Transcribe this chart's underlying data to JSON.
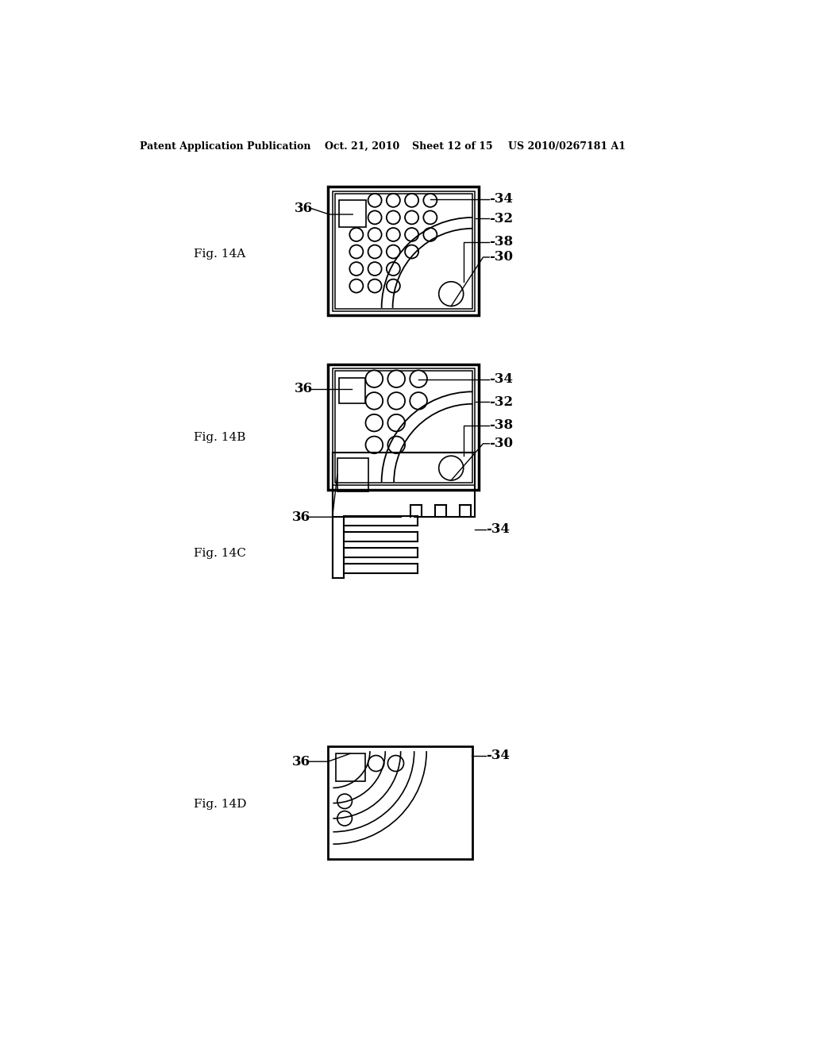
{
  "background_color": "#ffffff",
  "header_text": "Patent Application Publication",
  "header_date": "Oct. 21, 2010",
  "header_sheet": "Sheet 12 of 15",
  "header_patent": "US 2010/0267181 A1",
  "line_color": "#000000",
  "lw_outer": 2.0,
  "lw_inner": 1.2,
  "lw_thin": 0.8
}
